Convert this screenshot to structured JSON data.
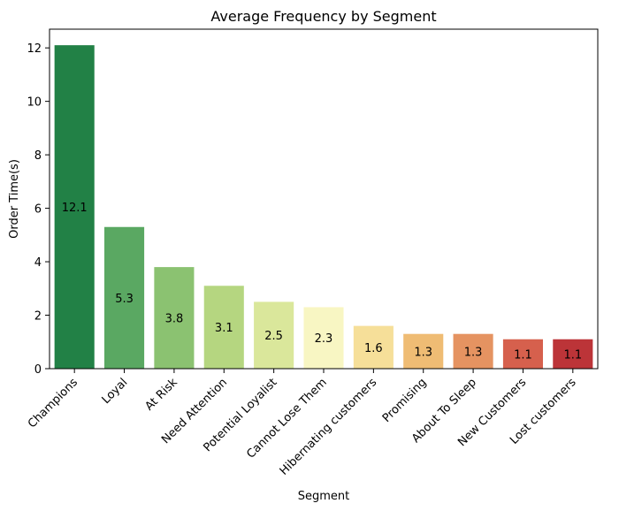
{
  "chart_data": {
    "type": "bar",
    "title": "Average Frequency by Segment",
    "xlabel": "Segment",
    "ylabel": "Order Time(s)",
    "categories": [
      "Champions",
      "Loyal",
      "At Risk",
      "Need Attention",
      "Potential Loyalist",
      "Cannot Lose Them",
      "Hibernating customers",
      "Promising",
      "About To Sleep",
      "New Customers",
      "Lost customers"
    ],
    "values": [
      12.1,
      5.3,
      3.8,
      3.1,
      2.5,
      2.3,
      1.6,
      1.3,
      1.3,
      1.1,
      1.1
    ],
    "data_labels": [
      "12.1",
      "5.3",
      "3.8",
      "3.1",
      "2.5",
      "2.3",
      "1.6",
      "1.3",
      "1.3",
      "1.1",
      "1.1"
    ],
    "colors": [
      "#228146",
      "#5aa862",
      "#8bc271",
      "#b5d680",
      "#dae79b",
      "#f8f6c3",
      "#f6df99",
      "#efbc74",
      "#e59361",
      "#d6604d",
      "#bc3438"
    ],
    "ylim": [
      0,
      12.7
    ],
    "yticks": [
      0,
      2,
      4,
      6,
      8,
      10,
      12
    ],
    "grid": false,
    "legend": "none"
  }
}
